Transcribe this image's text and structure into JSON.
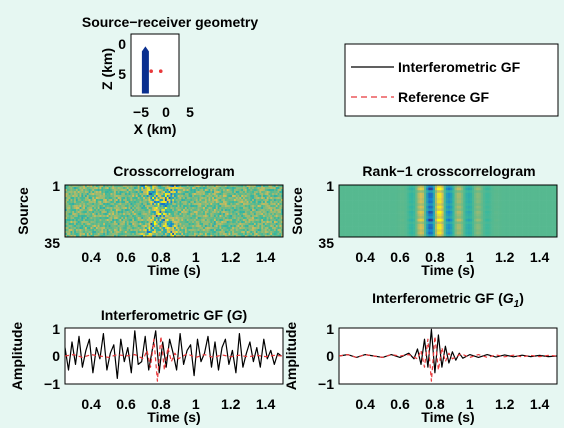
{
  "figure": {
    "background": "#e6f7f2",
    "colors": {
      "interferometric": "#000000",
      "reference": "#e8383a",
      "source_marker": "#0a2f8f",
      "receiver_marker": "#e8383a"
    }
  },
  "legend": {
    "items": [
      {
        "label": "Interferometric GF",
        "style": "solid",
        "color": "#000000"
      },
      {
        "label": "Reference GF",
        "style": "dashed",
        "color": "#e8383a"
      }
    ]
  },
  "chart_data": [
    {
      "id": "geometry",
      "type": "scatter",
      "title": "Source−receiver geometry",
      "xlabel": "X (km)",
      "ylabel": "Z (km)",
      "xlim": [
        -5,
        5
      ],
      "ylim": [
        0,
        10
      ],
      "y_inverted": true,
      "xticks": [
        "−5",
        "0",
        "5"
      ],
      "yticks": [
        "0",
        "5"
      ],
      "series": [
        {
          "name": "sources",
          "marker": "filled-triangle-column",
          "color": "#0a2f8f",
          "x": -2.0,
          "z_top": 2.0,
          "z_bottom": 9.6
        },
        {
          "name": "receivers",
          "marker": "dot",
          "color": "#e8383a",
          "x": [
            -0.8,
            1.2
          ],
          "z": [
            6.0,
            6.0
          ]
        }
      ]
    },
    {
      "id": "crosscorrelogram",
      "type": "heatmap",
      "title": "Crosscorrelogram",
      "xlabel": "Time (s)",
      "ylabel": "Source",
      "xlim": [
        0.25,
        1.5
      ],
      "ylim": [
        1,
        35
      ],
      "xticks": [
        "0.4",
        "0.6",
        "0.8",
        "1",
        "1.2",
        "1.4"
      ],
      "yticks": [
        "1",
        "35"
      ],
      "colormap": "parula"
    },
    {
      "id": "rank1",
      "type": "heatmap",
      "title": "Rank−1 crosscorrelogram",
      "xlabel": "Time (s)",
      "ylabel": "Source",
      "xlim": [
        0.25,
        1.5
      ],
      "ylim": [
        1,
        35
      ],
      "xticks": [
        "0.4",
        "0.6",
        "0.8",
        "1",
        "1.2",
        "1.4"
      ],
      "yticks": [
        "1",
        "35"
      ],
      "colormap": "parula"
    },
    {
      "id": "gf_g",
      "type": "line",
      "title_main": "Interferometric GF (",
      "title_var": "G",
      "title_sub": "",
      "title_end": ")",
      "xlabel": "Time (s)",
      "ylabel": "Amplitude",
      "xlim": [
        0.25,
        1.5
      ],
      "ylim": [
        -1,
        1
      ],
      "xticks": [
        "0.4",
        "0.6",
        "0.8",
        "1",
        "1.2",
        "1.4"
      ],
      "yticks": [
        "−1",
        "0",
        "1"
      ],
      "series": [
        {
          "name": "Interferometric GF",
          "color": "#000000",
          "dash": "none",
          "x": [
            0.25,
            0.27,
            0.29,
            0.31,
            0.33,
            0.35,
            0.37,
            0.39,
            0.41,
            0.43,
            0.45,
            0.47,
            0.49,
            0.51,
            0.53,
            0.55,
            0.57,
            0.59,
            0.61,
            0.63,
            0.65,
            0.67,
            0.69,
            0.71,
            0.73,
            0.75,
            0.77,
            0.79,
            0.81,
            0.83,
            0.85,
            0.87,
            0.89,
            0.91,
            0.93,
            0.95,
            0.97,
            0.99,
            1.01,
            1.03,
            1.05,
            1.07,
            1.09,
            1.11,
            1.13,
            1.15,
            1.17,
            1.19,
            1.21,
            1.23,
            1.25,
            1.27,
            1.29,
            1.31,
            1.33,
            1.35,
            1.37,
            1.39,
            1.41,
            1.43,
            1.45,
            1.47,
            1.49
          ],
          "y": [
            0.3,
            -0.5,
            0.5,
            -0.3,
            0.7,
            -0.4,
            0.2,
            0.6,
            -0.6,
            0.3,
            -0.1,
            0.8,
            -0.5,
            0.1,
            0.4,
            -0.8,
            0.6,
            -0.2,
            0.3,
            -0.6,
            0.9,
            -0.3,
            -0.2,
            0.7,
            -0.5,
            0.2,
            0.9,
            -0.6,
            0.5,
            -0.4,
            0.6,
            0.1,
            -0.5,
            0.8,
            -0.3,
            0.2,
            0.4,
            -0.7,
            0.6,
            -0.2,
            0.1,
            0.7,
            -0.4,
            0.5,
            -0.5,
            0.3,
            0.6,
            -0.3,
            0.2,
            -0.6,
            0.8,
            -0.4,
            0.1,
            0.5,
            -0.2,
            0.3,
            -0.4,
            0.6,
            -0.1,
            0.2,
            -0.3,
            0.1,
            0.0
          ]
        },
        {
          "name": "Reference GF",
          "color": "#e8383a",
          "dash": "4,3",
          "x": [
            0.25,
            0.3,
            0.35,
            0.4,
            0.45,
            0.5,
            0.55,
            0.6,
            0.65,
            0.7,
            0.72,
            0.74,
            0.76,
            0.78,
            0.8,
            0.82,
            0.84,
            0.86,
            0.88,
            0.9,
            0.95,
            1.0,
            1.05,
            1.1,
            1.15,
            1.2,
            1.25,
            1.3,
            1.35,
            1.4,
            1.45,
            1.5
          ],
          "y": [
            0.0,
            0.05,
            -0.05,
            0.05,
            0.0,
            -0.05,
            0.05,
            0.0,
            0.05,
            -0.1,
            0.2,
            -0.4,
            0.6,
            -0.9,
            0.7,
            -0.5,
            0.3,
            -0.2,
            0.1,
            -0.1,
            0.08,
            -0.05,
            0.05,
            -0.05,
            0.04,
            -0.03,
            0.03,
            -0.03,
            0.02,
            -0.02,
            0.02,
            0.0
          ]
        }
      ]
    },
    {
      "id": "gf_g1",
      "type": "line",
      "title_main": "Interferometric GF (",
      "title_var": "G",
      "title_sub": "1",
      "title_end": ")",
      "xlabel": "Time (s)",
      "ylabel": "Amplitude",
      "xlim": [
        0.25,
        1.5
      ],
      "ylim": [
        -1,
        1
      ],
      "xticks": [
        "0.4",
        "0.6",
        "0.8",
        "1",
        "1.2",
        "1.4"
      ],
      "yticks": [
        "−1",
        "0",
        "1"
      ],
      "series": [
        {
          "name": "Interferometric GF",
          "color": "#000000",
          "dash": "none",
          "x": [
            0.25,
            0.3,
            0.35,
            0.4,
            0.45,
            0.5,
            0.55,
            0.6,
            0.65,
            0.68,
            0.7,
            0.72,
            0.74,
            0.76,
            0.78,
            0.8,
            0.82,
            0.84,
            0.86,
            0.88,
            0.9,
            0.92,
            0.94,
            0.96,
            1.0,
            1.05,
            1.1,
            1.15,
            1.2,
            1.25,
            1.3,
            1.35,
            1.4,
            1.45,
            1.5
          ],
          "y": [
            0.0,
            0.05,
            -0.05,
            0.05,
            0.0,
            -0.05,
            0.05,
            -0.05,
            0.1,
            -0.1,
            0.25,
            -0.3,
            0.6,
            -0.4,
            0.95,
            -0.6,
            0.75,
            -0.4,
            0.35,
            -0.25,
            0.15,
            -0.15,
            0.1,
            -0.08,
            0.05,
            -0.05,
            0.05,
            -0.04,
            0.04,
            -0.03,
            0.03,
            -0.02,
            0.02,
            -0.02,
            0.0
          ]
        },
        {
          "name": "Reference GF",
          "color": "#e8383a",
          "dash": "4,3",
          "x": [
            0.25,
            0.3,
            0.35,
            0.4,
            0.45,
            0.5,
            0.55,
            0.6,
            0.65,
            0.7,
            0.72,
            0.74,
            0.76,
            0.78,
            0.8,
            0.82,
            0.84,
            0.86,
            0.88,
            0.9,
            0.95,
            1.0,
            1.05,
            1.1,
            1.15,
            1.2,
            1.25,
            1.3,
            1.35,
            1.4,
            1.45,
            1.5
          ],
          "y": [
            0.0,
            0.05,
            -0.05,
            0.05,
            0.0,
            -0.05,
            0.05,
            0.0,
            0.05,
            -0.1,
            0.2,
            -0.4,
            0.6,
            -0.9,
            0.7,
            -0.5,
            0.3,
            -0.2,
            0.1,
            -0.1,
            0.08,
            -0.05,
            0.05,
            -0.05,
            0.04,
            -0.03,
            0.03,
            -0.03,
            0.02,
            -0.02,
            0.02,
            0.0
          ]
        }
      ]
    }
  ]
}
